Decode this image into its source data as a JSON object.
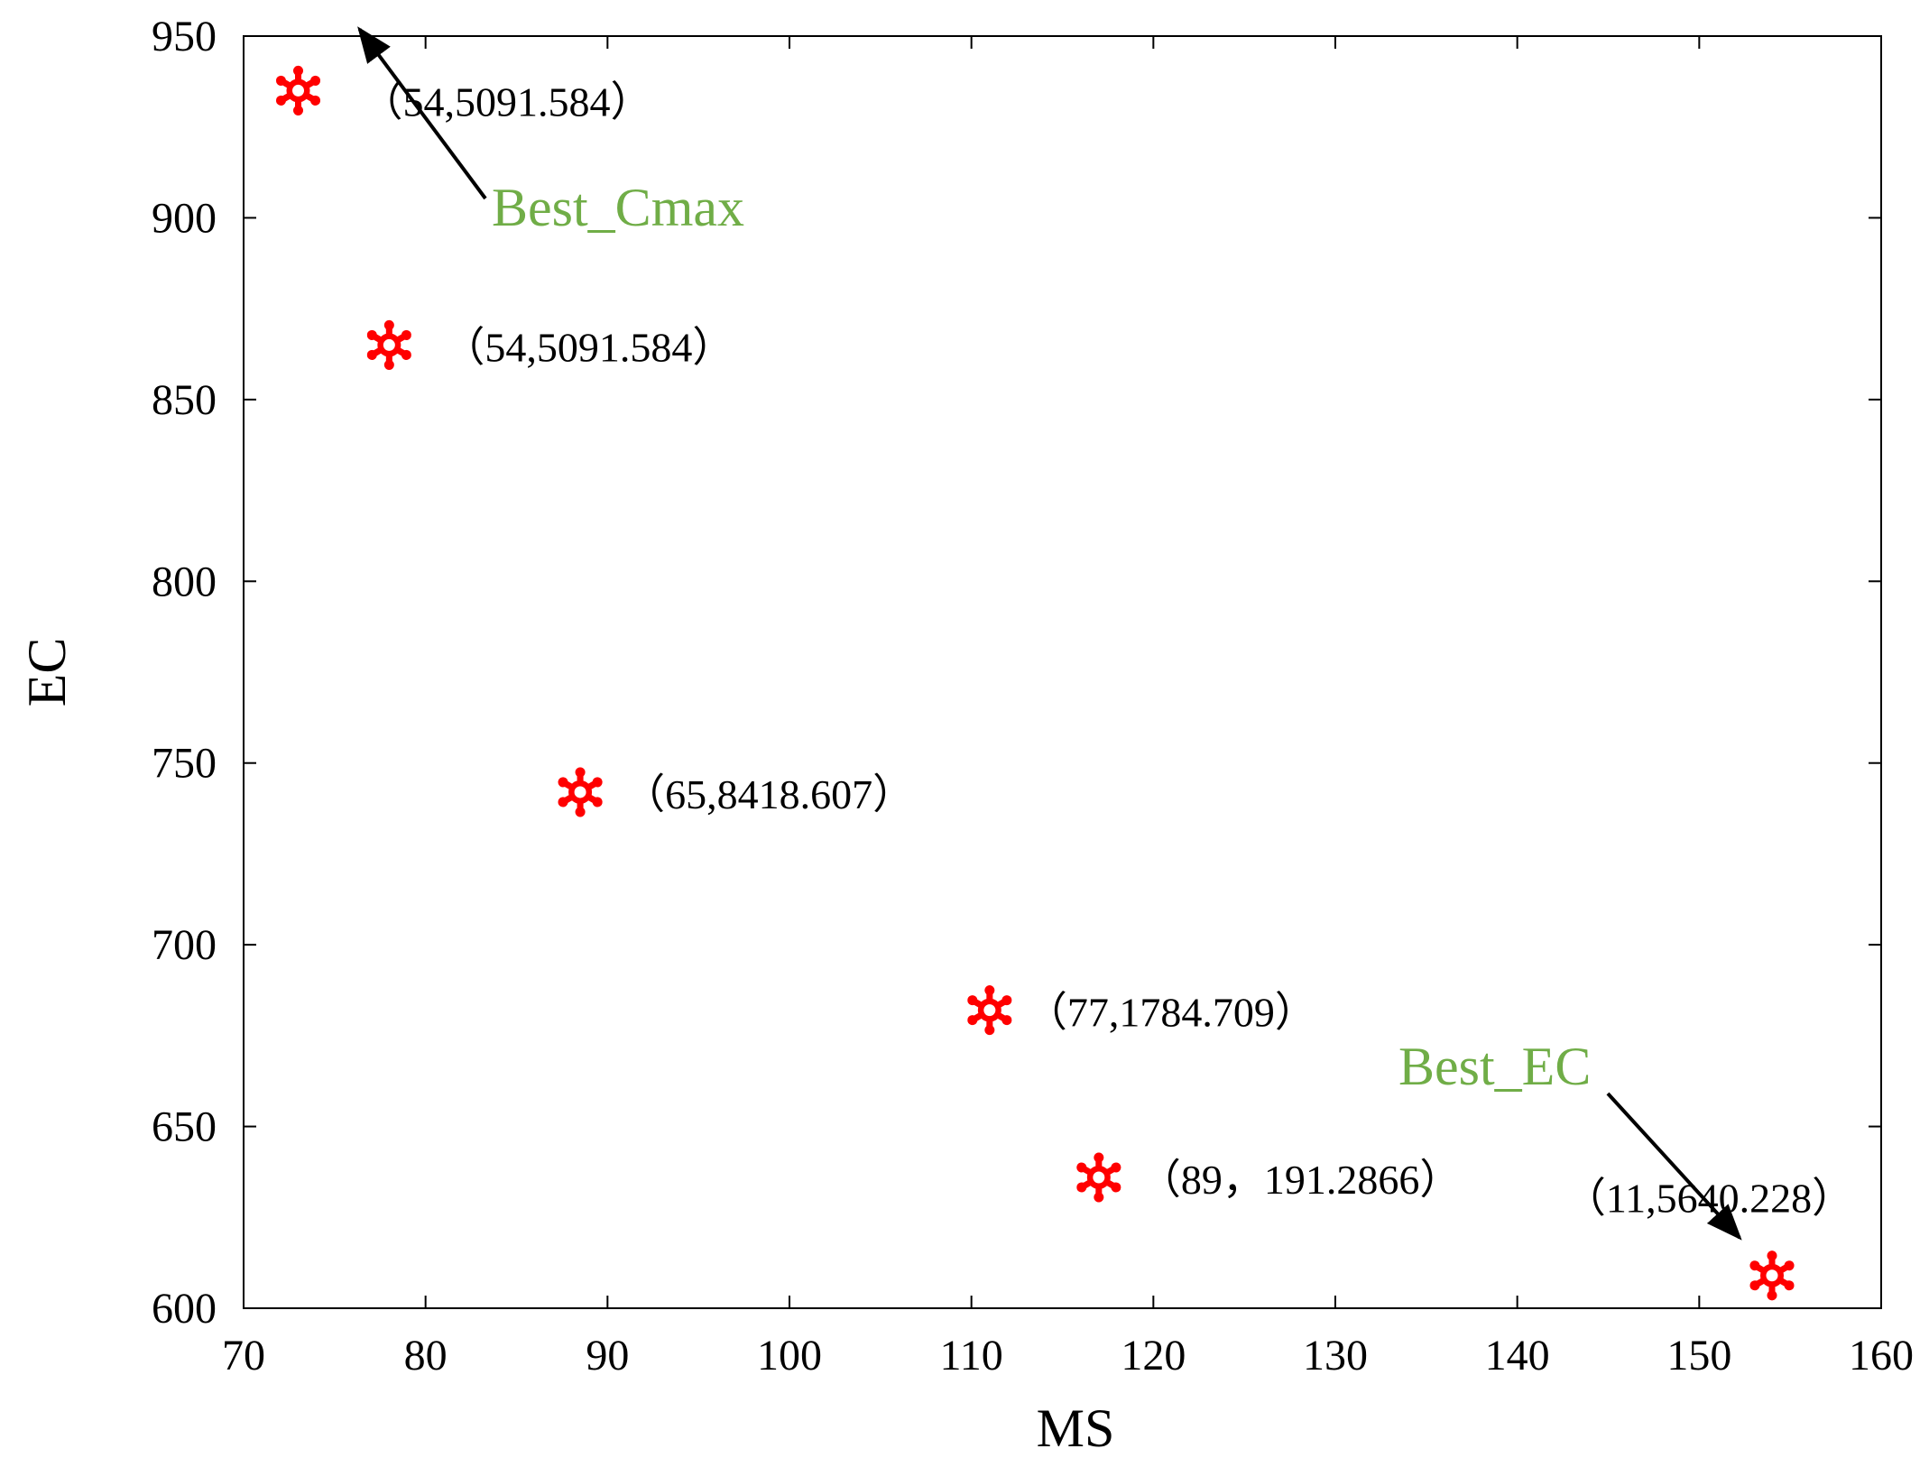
{
  "chart_data": {
    "type": "scatter",
    "xlabel": "MS",
    "ylabel": "EC",
    "xlim": [
      70,
      160
    ],
    "ylim": [
      600,
      950
    ],
    "xticks": [
      70,
      80,
      90,
      100,
      110,
      120,
      130,
      140,
      150,
      160
    ],
    "yticks": [
      600,
      650,
      700,
      750,
      800,
      850,
      900,
      950
    ],
    "grid": false,
    "marker_color": "#ff0000",
    "points": [
      {
        "x": 73,
        "y": 935,
        "label": "（54,5091.584）"
      },
      {
        "x": 78,
        "y": 865,
        "label": "（54,5091.584）"
      },
      {
        "x": 88.5,
        "y": 742,
        "label": "（65,8418.607）"
      },
      {
        "x": 111,
        "y": 682,
        "label": "（77,1784.709）"
      },
      {
        "x": 117,
        "y": 636,
        "label": "（89，191.2866）"
      },
      {
        "x": 154,
        "y": 609,
        "label": "（11,5640.228）"
      }
    ],
    "annotations": [
      {
        "text": "Best_Cmax",
        "color": "#70ad47",
        "target_point": 0
      },
      {
        "text": "Best_EC",
        "color": "#70ad47",
        "target_point": 5
      }
    ]
  }
}
